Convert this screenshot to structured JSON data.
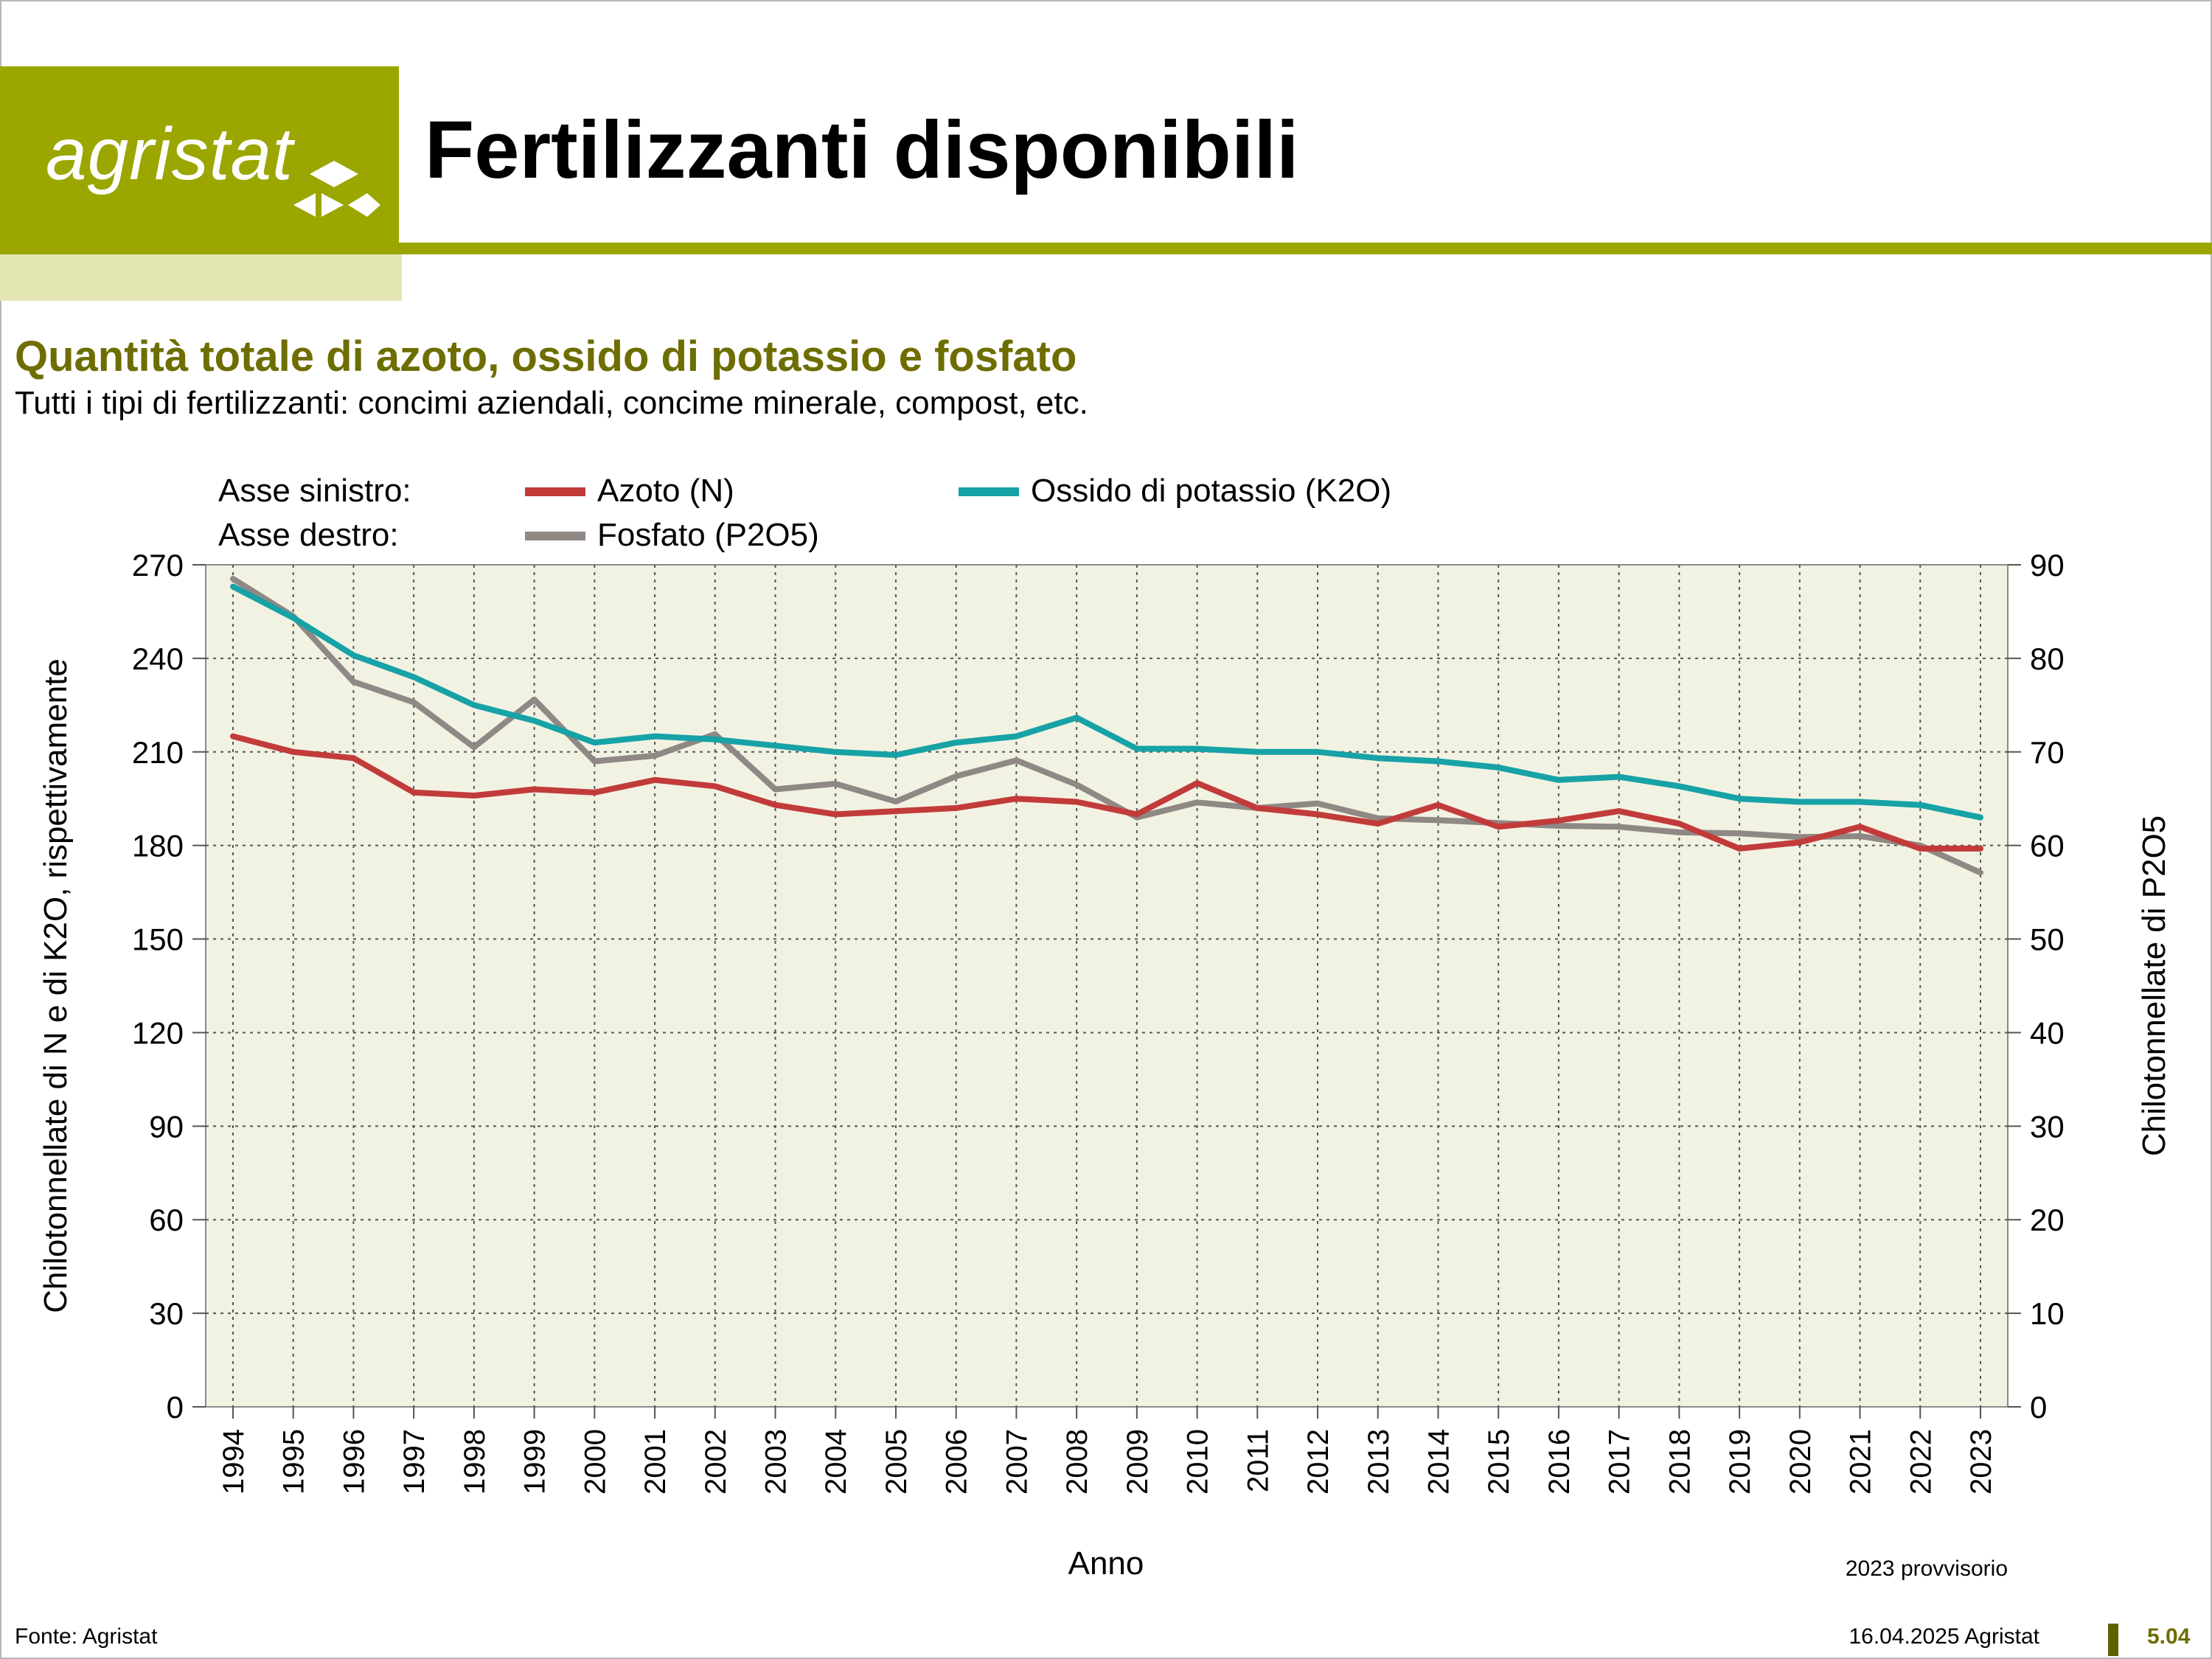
{
  "header": {
    "logo_text": "agristat",
    "title": "Fertilizzanti disponibili"
  },
  "subtitle": "Quantità totale di azoto, ossido di potassio e fosfato",
  "description": "Tutti i tipi di fertilizzanti: concimi aziendali, concime minerale, compost, etc.",
  "footer": {
    "source": "Fonte: Agristat",
    "date": "16.04.2025 Agristat",
    "page": "5.04"
  },
  "colors": {
    "brand": "#9ba600",
    "brand_light": "#e3e6b3",
    "plot_bg": "#f2f2e3",
    "azoto": "#c23b3b",
    "potassio": "#17a2a6",
    "fosfato": "#8f8884"
  },
  "chart_data": {
    "type": "line",
    "xlabel": "Anno",
    "ylabel_left": "Chilotonnellate di N e di K2O, rispettivamente",
    "ylabel_right": "Chilotonnellate di P2O5",
    "ylim_left": [
      0,
      270
    ],
    "ylim_right": [
      0,
      90
    ],
    "yticks_left": [
      0,
      30,
      60,
      90,
      120,
      150,
      180,
      210,
      240,
      270
    ],
    "yticks_right": [
      0,
      10,
      20,
      30,
      40,
      50,
      60,
      70,
      80,
      90
    ],
    "grid": true,
    "note": "2023 provvisorio",
    "legend": {
      "left_axis_label": "Asse sinistro:",
      "right_axis_label": "Asse destro:"
    },
    "x": [
      "1994",
      "1995",
      "1996",
      "1997",
      "1998",
      "1999",
      "2000",
      "2001",
      "2002",
      "2003",
      "2004",
      "2005",
      "2006",
      "2007",
      "2008",
      "2009",
      "2010",
      "2011",
      "2012",
      "2013",
      "2014",
      "2015",
      "2016",
      "2017",
      "2018",
      "2019",
      "2020",
      "2021",
      "2022",
      "2023"
    ],
    "series": [
      {
        "name": "Azoto (N)",
        "axis": "left",
        "color": "#c23b3b",
        "values": [
          215,
          210,
          208,
          197,
          196,
          198,
          197,
          201,
          199,
          193,
          190,
          191,
          192,
          195,
          194,
          190,
          200,
          192,
          190,
          187,
          193,
          186,
          188,
          191,
          187,
          179,
          181,
          186,
          179,
          179
        ]
      },
      {
        "name": "Ossido di potassio (K2O)",
        "axis": "left",
        "color": "#17a2a6",
        "values": [
          263,
          253,
          241,
          234,
          225,
          220,
          213,
          215,
          214,
          212,
          210,
          209,
          213,
          215,
          221,
          211,
          211,
          210,
          210,
          208,
          207,
          205,
          201,
          202,
          199,
          195,
          194,
          194,
          193,
          189
        ]
      },
      {
        "name": "Fosfato (P2O5)",
        "axis": "right",
        "color": "#8f8884",
        "values": [
          88.5,
          84.5,
          77.5,
          75.3,
          70.5,
          75.6,
          69.0,
          69.6,
          71.9,
          66.0,
          66.6,
          64.7,
          67.4,
          69.1,
          66.5,
          63.0,
          64.6,
          64.0,
          64.5,
          62.9,
          62.7,
          62.4,
          62.1,
          62.0,
          61.4,
          61.3,
          60.9,
          61.0,
          60.0,
          57.1
        ]
      }
    ]
  }
}
